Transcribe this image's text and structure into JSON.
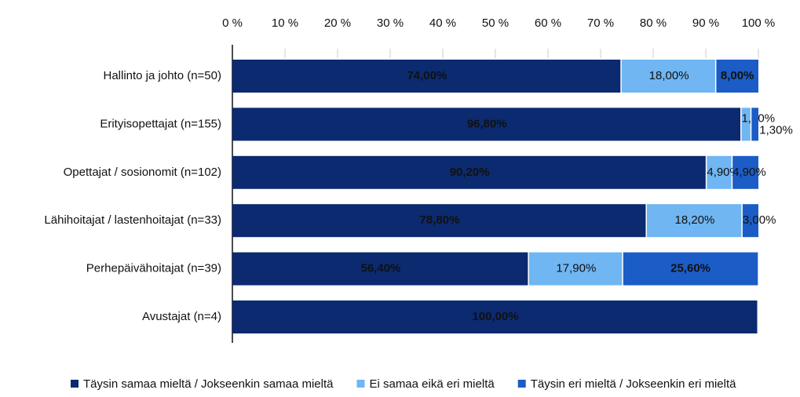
{
  "chart_data": {
    "type": "stacked-bar-horizontal",
    "categories": [
      "Hallinto ja johto (n=50)",
      "Erityisopettajat (n=155)",
      "Opettajat / sosionomit (n=102)",
      "Lähihoitajat / lastenhoitajat (n=33)",
      "Perhepäivähoitajat (n=39)",
      "Avustajat (n=4)"
    ],
    "series": [
      {
        "name": "Täysin samaa mieltä / Jokseenkin samaa mieltä",
        "color": "#0b2a6f",
        "values": [
          74,
          96.8,
          90.2,
          78.8,
          56.4,
          100
        ],
        "value_labels": [
          "74,00%",
          "96,80%",
          "90,20%",
          "78,80%",
          "56,40%",
          "100,00%"
        ]
      },
      {
        "name": "Ei samaa eikä eri mieltä",
        "color": "#6fb6f2",
        "values": [
          18,
          1.9,
          4.9,
          18.2,
          17.9,
          null
        ],
        "value_labels": [
          "18,00%",
          "1,90%",
          "4,90%",
          "18,20%",
          "17,90%",
          null
        ]
      },
      {
        "name": "Täysin eri mieltä / Jokseenkin eri mieltä",
        "color": "#1c5cc6",
        "values": [
          8,
          1.3,
          4.9,
          3,
          25.6,
          null
        ],
        "value_labels": [
          "8,00%",
          "1,30%",
          "4,90%",
          "3,00%",
          "25,60%",
          null
        ]
      }
    ],
    "xlim": [
      0,
      100
    ],
    "xticks": [
      {
        "value": 0,
        "label": "0 %"
      },
      {
        "value": 10,
        "label": "10 %"
      },
      {
        "value": 20,
        "label": "20 %"
      },
      {
        "value": 30,
        "label": "30 %"
      },
      {
        "value": 40,
        "label": "40 %"
      },
      {
        "value": 50,
        "label": "50 %"
      },
      {
        "value": 60,
        "label": "60 %"
      },
      {
        "value": 70,
        "label": "70 %"
      },
      {
        "value": 80,
        "label": "80 %"
      },
      {
        "value": 90,
        "label": "90 %"
      },
      {
        "value": 100,
        "label": "100 %"
      }
    ],
    "legend": "bottom"
  }
}
